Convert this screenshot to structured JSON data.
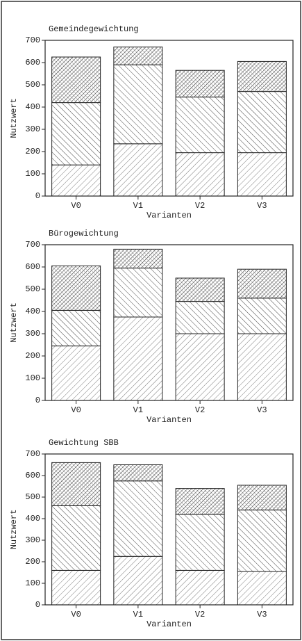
{
  "chart_data": [
    {
      "type": "bar",
      "stacked": true,
      "title": "Gemeindegewichtung",
      "xlabel": "Varianten",
      "ylabel": "Nutzwert",
      "categories": [
        "V0",
        "V1",
        "V2",
        "V3"
      ],
      "series": [
        {
          "hatch": "forward",
          "values": [
            140,
            235,
            195,
            195
          ]
        },
        {
          "hatch": "back",
          "values": [
            280,
            355,
            250,
            275
          ]
        },
        {
          "hatch": "dense",
          "values": [
            205,
            80,
            120,
            135
          ]
        }
      ],
      "ylim": [
        0,
        700
      ],
      "yticks": [
        0,
        100,
        200,
        300,
        400,
        500,
        600,
        700
      ]
    },
    {
      "type": "bar",
      "stacked": true,
      "title": "Bürogewichtung",
      "xlabel": "Varianten",
      "ylabel": "Nutzwert",
      "categories": [
        "V0",
        "V1",
        "V2",
        "V3"
      ],
      "series": [
        {
          "hatch": "forward",
          "values": [
            245,
            375,
            300,
            300
          ]
        },
        {
          "hatch": "back",
          "values": [
            160,
            220,
            145,
            160
          ]
        },
        {
          "hatch": "dense",
          "values": [
            200,
            85,
            105,
            130
          ]
        }
      ],
      "ylim": [
        0,
        700
      ],
      "yticks": [
        0,
        100,
        200,
        300,
        400,
        500,
        600,
        700
      ]
    },
    {
      "type": "bar",
      "stacked": true,
      "title": "Gewichtung SBB",
      "xlabel": "Varianten",
      "ylabel": "Nutzwert",
      "categories": [
        "V0",
        "V1",
        "V2",
        "V3"
      ],
      "series": [
        {
          "hatch": "forward",
          "values": [
            160,
            225,
            160,
            155
          ]
        },
        {
          "hatch": "back",
          "values": [
            300,
            350,
            260,
            285
          ]
        },
        {
          "hatch": "dense",
          "values": [
            200,
            75,
            120,
            115
          ]
        }
      ],
      "ylim": [
        0,
        700
      ],
      "yticks": [
        0,
        100,
        200,
        300,
        400,
        500,
        600,
        700
      ]
    }
  ]
}
